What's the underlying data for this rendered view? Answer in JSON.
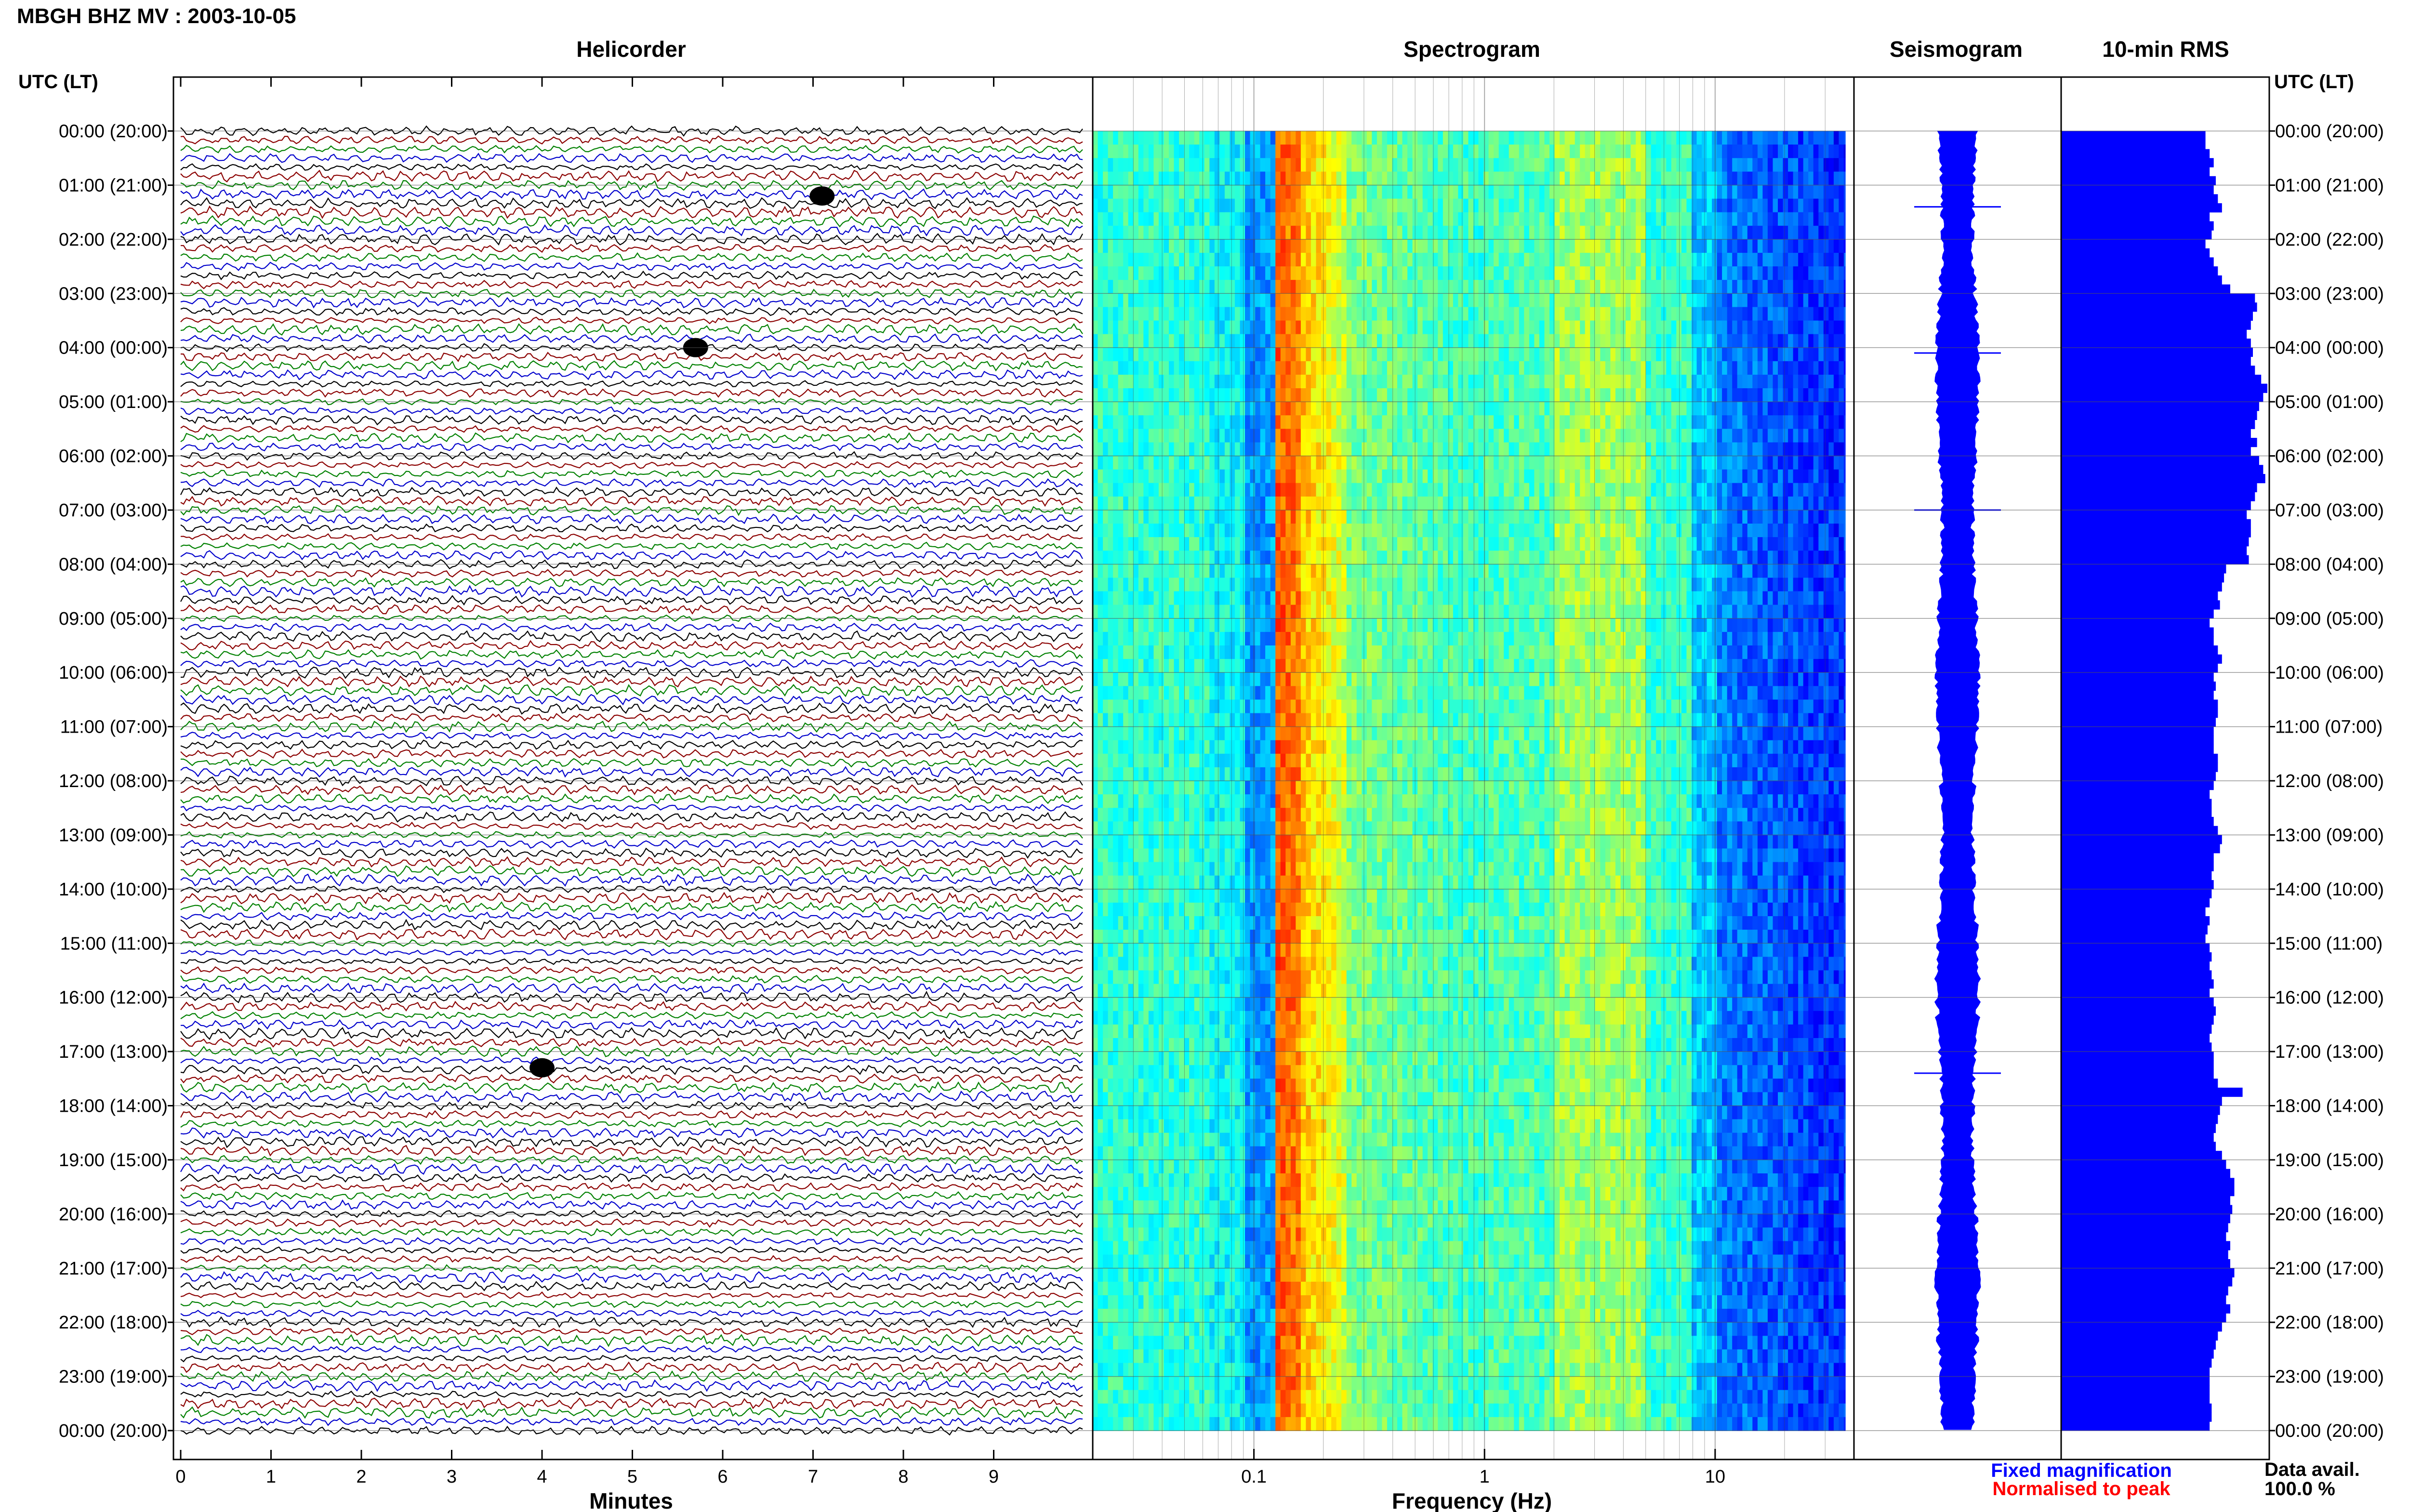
{
  "title": "MBGH BHZ MV : 2003-10-05",
  "panels": {
    "helicorder": "Helicorder",
    "spectrogram": "Spectrogram",
    "seismogram": "Seismogram",
    "rms": "10-min RMS"
  },
  "axis_header_left": "UTC (LT)",
  "axis_header_right": "UTC (LT)",
  "time_labels": [
    "00:00 (20:00)",
    "01:00 (21:00)",
    "02:00 (22:00)",
    "03:00 (23:00)",
    "04:00 (00:00)",
    "05:00 (01:00)",
    "06:00 (02:00)",
    "07:00 (03:00)",
    "08:00 (04:00)",
    "09:00 (05:00)",
    "10:00 (06:00)",
    "11:00 (07:00)",
    "12:00 (08:00)",
    "13:00 (09:00)",
    "14:00 (10:00)",
    "15:00 (11:00)",
    "16:00 (12:00)",
    "17:00 (13:00)",
    "18:00 (14:00)",
    "19:00 (15:00)",
    "20:00 (16:00)",
    "21:00 (17:00)",
    "22:00 (18:00)",
    "23:00 (19:00)",
    "00:00 (20:00)"
  ],
  "helicorder_xlabel": "Minutes",
  "helicorder_xticks": [
    "0",
    "1",
    "2",
    "3",
    "4",
    "5",
    "6",
    "7",
    "8",
    "9"
  ],
  "spectrogram_xlabel": "Frequency (Hz)",
  "spectrogram_xticks": [
    "0.1",
    "1",
    "10"
  ],
  "legend": {
    "fixed": "Fixed magnification",
    "normalised": "Normalised to peak"
  },
  "data_avail_label": "Data avail.",
  "data_avail_value": "100.0 %",
  "colors": {
    "trace_cycle": [
      "#000000",
      "#8b0000",
      "#008000",
      "#0000cc"
    ],
    "rms_bar": "#0000ff",
    "seismogram": "#0000ff",
    "fixed_text": "#0000ff",
    "normalised_text": "#ff0000"
  },
  "chart_data": [
    {
      "type": "line",
      "name": "helicorder",
      "title": "Helicorder",
      "xlabel": "Minutes",
      "xlim": [
        0,
        10
      ],
      "ylim_hours_utc": [
        0,
        24
      ],
      "traces_per_hour": 6,
      "trace_colors_cycle": [
        "black",
        "darkred",
        "green",
        "blue"
      ],
      "events": [
        {
          "hour": 1.2,
          "minute": 7.1
        },
        {
          "hour": 4.0,
          "minute": 5.7
        },
        {
          "hour": 17.3,
          "minute": 4.0
        }
      ]
    },
    {
      "type": "heatmap",
      "name": "spectrogram",
      "title": "Spectrogram",
      "xlabel": "Frequency (Hz)",
      "xscale": "log",
      "xlim": [
        0.02,
        40
      ],
      "ylim_hours_utc": [
        0,
        24
      ],
      "dominant_band_hz": [
        0.13,
        0.25
      ],
      "secondary_band_hz": [
        2,
        5
      ],
      "low_energy_above_hz": 10
    },
    {
      "type": "line",
      "name": "seismogram",
      "title": "Seismogram",
      "ylim_hours_utc": [
        0,
        24
      ],
      "spikes_hour": [
        1.4,
        4.1,
        7.0,
        17.4
      ]
    },
    {
      "type": "bar",
      "name": "10-min RMS",
      "title": "10-min RMS",
      "orientation": "horizontal",
      "ylim_hours_utc": [
        0,
        24
      ],
      "bin_minutes": 10,
      "values": [
        0.7,
        0.7,
        0.72,
        0.74,
        0.72,
        0.75,
        0.74,
        0.76,
        0.78,
        0.72,
        0.74,
        0.73,
        0.7,
        0.72,
        0.74,
        0.76,
        0.78,
        0.82,
        0.94,
        0.95,
        0.93,
        0.92,
        0.9,
        0.92,
        0.93,
        0.92,
        0.94,
        0.97,
        1.0,
        0.98,
        0.96,
        0.95,
        0.94,
        0.92,
        0.95,
        0.92,
        0.96,
        0.98,
        0.99,
        0.95,
        0.94,
        0.92,
        0.9,
        0.92,
        0.92,
        0.91,
        0.9,
        0.91,
        0.8,
        0.79,
        0.78,
        0.76,
        0.77,
        0.74,
        0.72,
        0.74,
        0.74,
        0.76,
        0.78,
        0.76,
        0.74,
        0.75,
        0.74,
        0.76,
        0.76,
        0.75,
        0.74,
        0.74,
        0.74,
        0.76,
        0.76,
        0.75,
        0.74,
        0.72,
        0.73,
        0.73,
        0.74,
        0.76,
        0.78,
        0.77,
        0.74,
        0.74,
        0.73,
        0.74,
        0.73,
        0.72,
        0.7,
        0.72,
        0.71,
        0.7,
        0.72,
        0.73,
        0.72,
        0.73,
        0.74,
        0.72,
        0.74,
        0.75,
        0.74,
        0.73,
        0.72,
        0.73,
        0.74,
        0.74,
        0.74,
        0.76,
        0.88,
        0.78,
        0.77,
        0.76,
        0.75,
        0.74,
        0.75,
        0.78,
        0.8,
        0.82,
        0.84,
        0.84,
        0.82,
        0.83,
        0.82,
        0.81,
        0.8,
        0.82,
        0.81,
        0.82,
        0.84,
        0.83,
        0.81,
        0.8,
        0.82,
        0.8,
        0.78,
        0.76,
        0.75,
        0.74,
        0.73,
        0.72,
        0.72,
        0.72,
        0.72,
        0.73,
        0.73,
        0.72
      ]
    }
  ]
}
